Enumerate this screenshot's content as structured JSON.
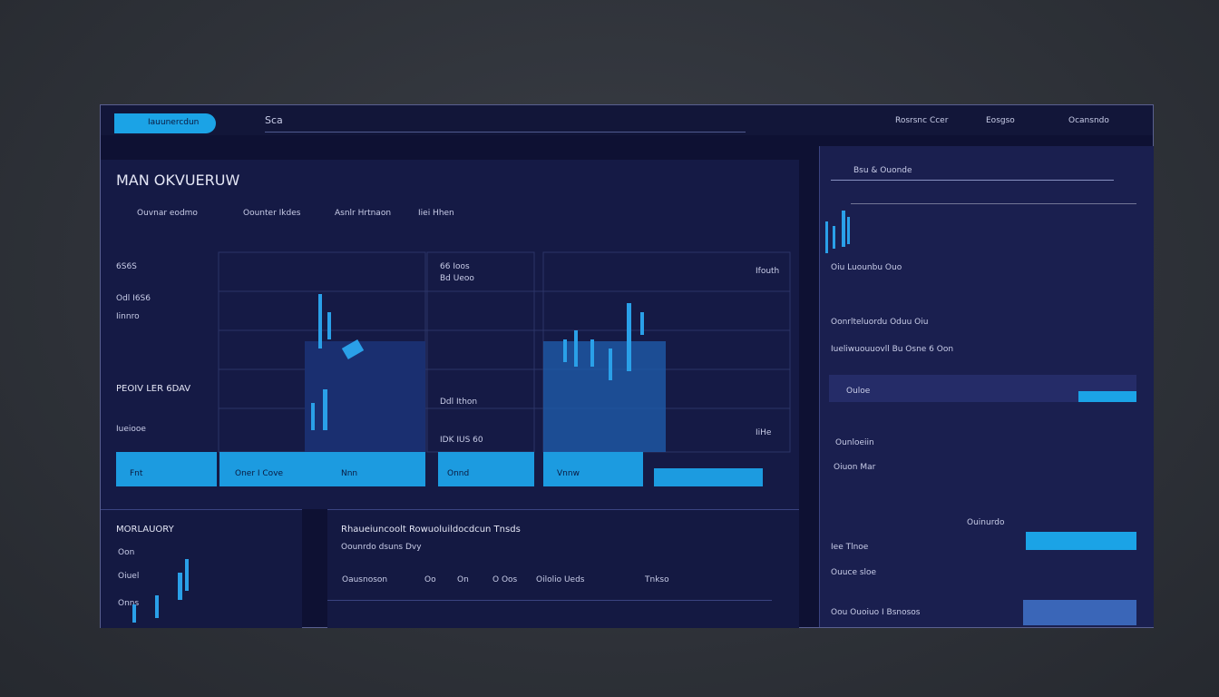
{
  "header": {
    "brand": "Iauunercdun",
    "search": "Sca",
    "nav": [
      "Rosrsnc Ccer",
      "Eosgso",
      "Ocansndo"
    ]
  },
  "overview": {
    "title": "MAN OKVUERUW",
    "tabs": [
      "Ouvnar eodmo",
      "Oounter Ikdes",
      "Asnlr Hrtnaon",
      "Iiei Hhen"
    ],
    "rows": [
      "6S6S",
      "Odl I6S6",
      "Iinnro",
      "Iueiooe"
    ],
    "subtitle": "PEOIV LER 6DAV",
    "cells": [
      "66 Ioos",
      "Bd Ueoo",
      "Ddl Ithon",
      "IDK IUS 60",
      "Ifouth",
      "IiHe"
    ],
    "buttons": [
      "Fnt",
      "Oner I Cove",
      "Nnn",
      "Onnd",
      "Vnnw"
    ]
  },
  "bottom_left": {
    "title": "MORLAUORY",
    "rows": [
      "Oon",
      "Oiuel",
      "Onns"
    ]
  },
  "bottom_center": {
    "headline": "Rhaueiuncoolt Rowuoluildocdcun Tnsds",
    "sub": "Oounrdo dsuns Dvy",
    "tags": [
      "Oausnoson",
      "Oo",
      "On",
      "O Oos",
      "Oilolio Ueds",
      "Tnkso"
    ]
  },
  "sidebar": {
    "title": "Bsu & Ouonde",
    "items": [
      "Oiu Luounbu Ouo",
      "Oonrlteluordu Oduu Oiu",
      "Iueliwuouuovll Bu Osne 6 Oon",
      "Ouloe",
      "Ounloeiin",
      "Oiuon Mar",
      "Ouinurdo",
      "Iee Tlnoe",
      "Ouuce sloe",
      "Oou Ouoiuo I Bsnosos"
    ]
  }
}
